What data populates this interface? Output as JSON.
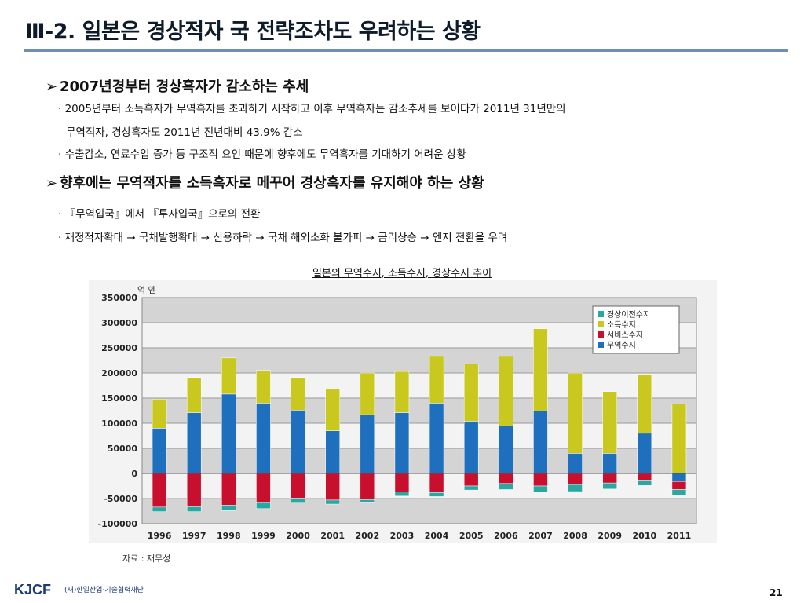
{
  "slide": {
    "title": "Ⅲ-2. 일본은 경상적자 국 전략조차도 우려하는 상황",
    "heading1": "2007년경부터 경상흑자가 감소하는 추세",
    "bullet1a": "· 2005년부터 소득흑자가 무역흑자를 초과하기 시작하고 이후 무역흑자는 감소추세를 보이다가 2011년 31년만의",
    "bullet1b": "무역적자, 경상흑자도 2011년 전년대비 43.9% 감소",
    "bullet1c": "· 수출감소, 연료수입 증가 등 구조적 요인 때문에 향후에도 무역흑자를 기대하기 어려운 상황",
    "heading2": "향후에는 무역적자를 소득흑자로 메꾸어 경상흑자를 유지해야 하는 상황",
    "bullet2a": "· 『무역입국』에서 『투자입국』으로의 전환",
    "bullet2b": "·  재정적자확대 → 국채발행확대 → 신용하락 → 국채 해외소화 불가피 → 금리상승 → 엔저 전환을 우려",
    "caption": "일본의 무역수지, 소득수지, 경상수지 추이",
    "source": "자료 : 재무성",
    "logo": "KJCF",
    "logo_sub": "(재)한일산업·기술협력재단",
    "page": "21",
    "arrow": "➢"
  },
  "colors": {
    "trade": "#1f6fbf",
    "service": "#c8102e",
    "income": "#c8c81e",
    "current": "#2aa7a0",
    "plot_band": "#d4d4d4"
  },
  "chart_data": {
    "type": "bar",
    "title": "",
    "ylabel": "억 엔",
    "ylim": [
      -100000,
      350000
    ],
    "yticks": [
      350000,
      300000,
      250000,
      200000,
      150000,
      100000,
      50000,
      0,
      -50000,
      -100000
    ],
    "categories": [
      "1996",
      "1997",
      "1998",
      "1999",
      "2000",
      "2001",
      "2002",
      "2003",
      "2004",
      "2005",
      "2006",
      "2007",
      "2008",
      "2009",
      "2010",
      "2011"
    ],
    "legend": [
      "경상이전수지",
      "소득수지",
      "서비스수지",
      "무역수지"
    ],
    "series": [
      {
        "name": "무역수지",
        "values": [
          90000,
          121000,
          158000,
          140000,
          126000,
          85000,
          117000,
          121000,
          140000,
          104000,
          95000,
          124000,
          40000,
          40000,
          80000,
          -16000
        ]
      },
      {
        "name": "소득수지",
        "values": [
          58000,
          70000,
          72000,
          65000,
          65000,
          84000,
          83000,
          82000,
          93000,
          114000,
          138000,
          164000,
          160000,
          123000,
          117000,
          138000
        ]
      },
      {
        "name": "서비스수지",
        "values": [
          -67000,
          -66000,
          -63000,
          -58000,
          -49000,
          -53000,
          -52000,
          -37000,
          -38000,
          -25000,
          -20000,
          -25000,
          -22000,
          -19000,
          -13000,
          -16000
        ]
      },
      {
        "name": "경상이전수지",
        "values": [
          -9000,
          -10000,
          -11000,
          -12000,
          -10000,
          -8000,
          -6000,
          -8000,
          -8000,
          -8000,
          -12000,
          -12000,
          -14000,
          -12000,
          -11000,
          -11000
        ]
      }
    ]
  }
}
